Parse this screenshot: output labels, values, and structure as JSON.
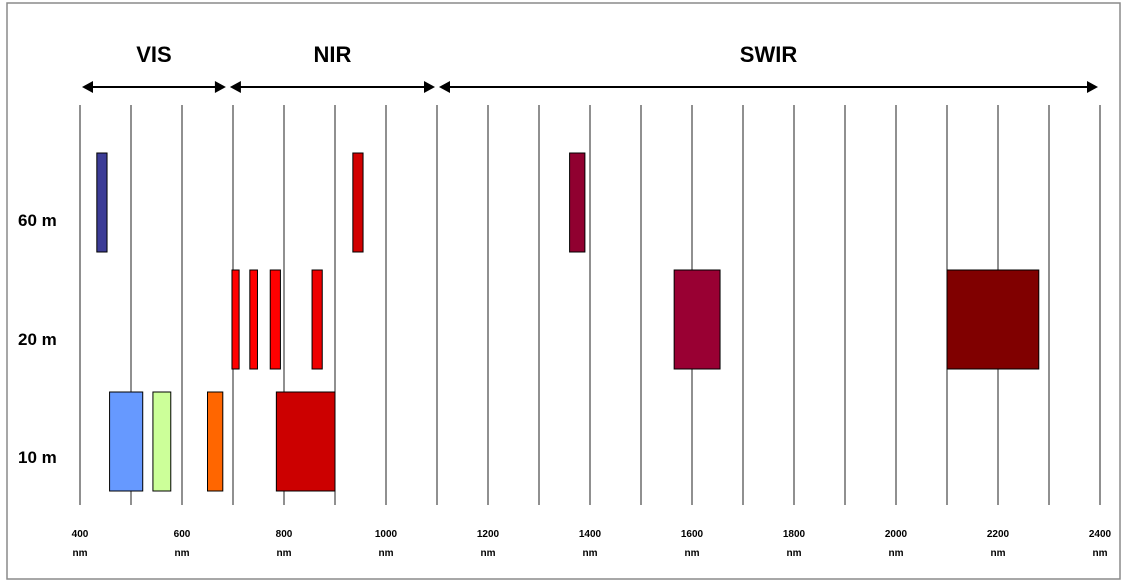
{
  "chart_data": {
    "type": "bar",
    "xlim": [
      400,
      2400
    ],
    "x_ticks": [
      400,
      500,
      600,
      700,
      800,
      900,
      1000,
      1100,
      1200,
      1300,
      1400,
      1500,
      1600,
      1700,
      1800,
      1900,
      2000,
      2100,
      2200,
      2300,
      2400
    ],
    "x_tick_labels": [
      {
        "value": 400,
        "text": "400",
        "unit": "nm"
      },
      {
        "value": 600,
        "text": "600",
        "unit": "nm"
      },
      {
        "value": 800,
        "text": "800",
        "unit": "nm"
      },
      {
        "value": 1000,
        "text": "1000",
        "unit": "nm"
      },
      {
        "value": 1200,
        "text": "1200",
        "unit": "nm"
      },
      {
        "value": 1400,
        "text": "1400",
        "unit": "nm"
      },
      {
        "value": 1600,
        "text": "1600",
        "unit": "nm"
      },
      {
        "value": 1800,
        "text": "1800",
        "unit": "nm"
      },
      {
        "value": 2000,
        "text": "2000",
        "unit": "nm"
      },
      {
        "value": 2200,
        "text": "2200",
        "unit": "nm"
      },
      {
        "value": 2400,
        "text": "2400",
        "unit": "nm"
      }
    ],
    "resolutions": [
      "60 m",
      "20 m",
      "10 m"
    ],
    "regions": [
      {
        "label": "VIS",
        "start": 400,
        "end": 690
      },
      {
        "label": "NIR",
        "start": 690,
        "end": 1100
      },
      {
        "label": "SWIR",
        "start": 1100,
        "end": 2400
      }
    ],
    "bands": [
      {
        "resolution": "60 m",
        "start": 433,
        "end": 453,
        "color": "#3c3c96"
      },
      {
        "resolution": "60 m",
        "start": 935,
        "end": 955,
        "color": "#d10000"
      },
      {
        "resolution": "60 m",
        "start": 1360,
        "end": 1390,
        "color": "#900030"
      },
      {
        "resolution": "20 m",
        "start": 698,
        "end": 712,
        "color": "#ff0000"
      },
      {
        "resolution": "20 m",
        "start": 733,
        "end": 748,
        "color": "#ff0000"
      },
      {
        "resolution": "20 m",
        "start": 773,
        "end": 793,
        "color": "#ff0000"
      },
      {
        "resolution": "20 m",
        "start": 855,
        "end": 875,
        "color": "#ee0000"
      },
      {
        "resolution": "20 m",
        "start": 1565,
        "end": 1655,
        "color": "#990033"
      },
      {
        "resolution": "20 m",
        "start": 2100,
        "end": 2280,
        "color": "#800000"
      },
      {
        "resolution": "10 m",
        "start": 458,
        "end": 523,
        "color": "#6699ff"
      },
      {
        "resolution": "10 m",
        "start": 543,
        "end": 578,
        "color": "#ccff99"
      },
      {
        "resolution": "10 m",
        "start": 650,
        "end": 680,
        "color": "#ff6600"
      },
      {
        "resolution": "10 m",
        "start": 785,
        "end": 900,
        "color": "#cc0000"
      }
    ]
  }
}
